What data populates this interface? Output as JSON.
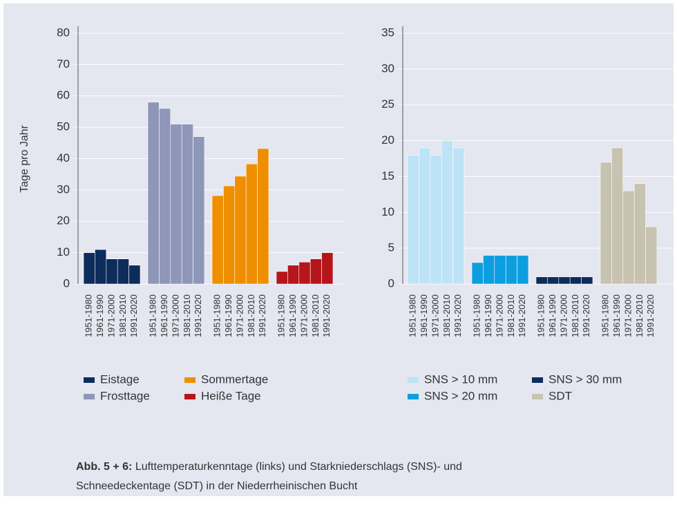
{
  "chart_data": [
    {
      "type": "bar",
      "ylabel": "Tage pro Jahr",
      "categories": [
        "1951-1980",
        "1961-1990",
        "1971-2000",
        "1981-2010",
        "1991-2020"
      ],
      "series": [
        {
          "name": "Eistage",
          "color": "#0c2c5c",
          "values": [
            10,
            11,
            8,
            8,
            6
          ]
        },
        {
          "name": "Frosttage",
          "color": "#8e97b8",
          "values": [
            58,
            56,
            51,
            51,
            47
          ]
        },
        {
          "name": "Sommertage",
          "color": "#ef8f00",
          "values": [
            28.2,
            31.3,
            34.4,
            38.3,
            43.2
          ]
        },
        {
          "name": "Heiße Tage",
          "color": "#b5161b",
          "values": [
            4,
            6,
            7,
            8,
            10
          ]
        }
      ],
      "ylim": [
        0,
        80
      ],
      "yticks": [
        0,
        10,
        20,
        30,
        40,
        50,
        60,
        70,
        80
      ],
      "grid": true
    },
    {
      "type": "bar",
      "categories": [
        "1951-1980",
        "1961-1990",
        "1971-2000",
        "1981-2010",
        "1991-2020"
      ],
      "series": [
        {
          "name": "SNS > 10 mm",
          "color": "#bde3f7",
          "values": [
            18,
            19,
            18,
            20,
            19
          ]
        },
        {
          "name": "SNS > 20 mm",
          "color": "#0d9ee0",
          "values": [
            3,
            4,
            4,
            4,
            4
          ]
        },
        {
          "name": "SNS > 30 mm",
          "color": "#0c2c5c",
          "values": [
            1,
            1,
            1,
            1,
            1
          ]
        },
        {
          "name": "SDT",
          "color": "#c8c3b0",
          "values": [
            17,
            19,
            13,
            14,
            8
          ]
        }
      ],
      "ylim": [
        0,
        35
      ],
      "yticks": [
        0,
        5,
        10,
        15,
        20,
        25,
        30,
        35
      ],
      "grid": true
    }
  ],
  "caption": {
    "label": "Abb. 5 + 6:",
    "lines": [
      "Lufttemperaturkenntage (links) und Starkniederschlags (SNS)- und",
      "Schneedeckentage (SDT) in der Niederrheinischen Bucht"
    ]
  }
}
